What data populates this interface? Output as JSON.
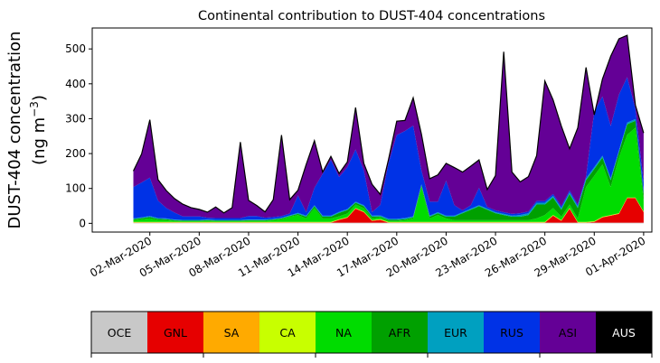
{
  "chart_data": {
    "type": "area",
    "stacked": true,
    "title": "Continental contribution to DUST-404 concentrations",
    "ylabel_line1": "DUST-404 concentration",
    "ylabel_line2_prefix": "(ng m",
    "ylabel_line2_sup": "−3",
    "ylabel_line2_suffix": ")",
    "ylim": [
      -25,
      560
    ],
    "yticks": [
      0,
      100,
      200,
      300,
      400,
      500
    ],
    "xlim": [
      "2020-02-27T12:00",
      "2020-04-01T12:00"
    ],
    "xticks": [
      {
        "date": "2020-03-02",
        "label": "02-Mar-2020"
      },
      {
        "date": "2020-03-05",
        "label": "05-Mar-2020"
      },
      {
        "date": "2020-03-08",
        "label": "08-Mar-2020"
      },
      {
        "date": "2020-03-11",
        "label": "11-Mar-2020"
      },
      {
        "date": "2020-03-14",
        "label": "14-Mar-2020"
      },
      {
        "date": "2020-03-17",
        "label": "17-Mar-2020"
      },
      {
        "date": "2020-03-20",
        "label": "20-Mar-2020"
      },
      {
        "date": "2020-03-23",
        "label": "23-Mar-2020"
      },
      {
        "date": "2020-03-26",
        "label": "26-Mar-2020"
      },
      {
        "date": "2020-03-29",
        "label": "29-Mar-2020"
      },
      {
        "date": "2020-04-01",
        "label": "01-Apr-2020"
      }
    ],
    "x": [
      "2020-03-01T00:00",
      "2020-03-01T12:00",
      "2020-03-02T00:00",
      "2020-03-02T12:00",
      "2020-03-03T00:00",
      "2020-03-03T12:00",
      "2020-03-04T00:00",
      "2020-03-04T12:00",
      "2020-03-05T00:00",
      "2020-03-05T12:00",
      "2020-03-06T00:00",
      "2020-03-06T12:00",
      "2020-03-07T00:00",
      "2020-03-07T12:00",
      "2020-03-08T00:00",
      "2020-03-08T12:00",
      "2020-03-09T00:00",
      "2020-03-09T12:00",
      "2020-03-10T00:00",
      "2020-03-10T12:00",
      "2020-03-11T00:00",
      "2020-03-11T12:00",
      "2020-03-12T00:00",
      "2020-03-12T12:00",
      "2020-03-13T00:00",
      "2020-03-13T12:00",
      "2020-03-14T00:00",
      "2020-03-14T12:00",
      "2020-03-15T00:00",
      "2020-03-15T12:00",
      "2020-03-16T00:00",
      "2020-03-16T12:00",
      "2020-03-17T00:00",
      "2020-03-17T12:00",
      "2020-03-18T00:00",
      "2020-03-18T12:00",
      "2020-03-19T00:00",
      "2020-03-19T12:00",
      "2020-03-20T00:00",
      "2020-03-20T12:00",
      "2020-03-21T00:00",
      "2020-03-21T12:00",
      "2020-03-22T00:00",
      "2020-03-22T12:00",
      "2020-03-23T00:00",
      "2020-03-23T12:00",
      "2020-03-24T00:00",
      "2020-03-24T12:00",
      "2020-03-25T00:00",
      "2020-03-25T12:00",
      "2020-03-26T00:00",
      "2020-03-26T12:00",
      "2020-03-27T00:00",
      "2020-03-27T12:00",
      "2020-03-28T00:00",
      "2020-03-28T12:00",
      "2020-03-29T00:00",
      "2020-03-29T12:00",
      "2020-03-30T00:00",
      "2020-03-30T12:00",
      "2020-03-31T00:00",
      "2020-03-31T12:00",
      "2020-04-01T00:00"
    ],
    "series": [
      {
        "name": "OCE",
        "color": "#c8c8c8",
        "values": [
          2,
          2,
          2,
          2,
          2,
          2,
          2,
          2,
          2,
          2,
          2,
          2,
          2,
          2,
          2,
          2,
          2,
          2,
          2,
          2,
          2,
          2,
          2,
          2,
          2,
          2,
          2,
          2,
          2,
          2,
          2,
          2,
          2,
          2,
          2,
          2,
          2,
          2,
          2,
          2,
          2,
          2,
          2,
          2,
          2,
          2,
          2,
          2,
          2,
          2,
          2,
          2,
          2,
          2,
          2,
          2,
          2,
          2,
          2,
          2,
          2,
          2,
          2
        ]
      },
      {
        "name": "GNL",
        "color": "#e60000",
        "values": [
          0,
          0,
          0,
          0,
          0,
          0,
          0,
          0,
          0,
          0,
          0,
          0,
          0,
          0,
          0,
          0,
          0,
          0,
          0,
          0,
          0,
          0,
          0,
          0,
          0,
          8,
          14,
          40,
          30,
          5,
          8,
          0,
          0,
          0,
          0,
          0,
          0,
          0,
          0,
          0,
          0,
          0,
          0,
          0,
          0,
          0,
          0,
          0,
          0,
          0,
          0,
          20,
          5,
          40,
          0,
          0,
          2,
          15,
          20,
          25,
          70,
          70,
          30
        ]
      },
      {
        "name": "SA",
        "color": "#ffaa00",
        "values": [
          1,
          1,
          1,
          1,
          1,
          1,
          1,
          1,
          1,
          1,
          1,
          1,
          1,
          1,
          1,
          1,
          1,
          1,
          1,
          1,
          1,
          1,
          1,
          1,
          1,
          1,
          1,
          1,
          1,
          1,
          1,
          1,
          1,
          1,
          1,
          1,
          1,
          1,
          1,
          1,
          1,
          1,
          1,
          1,
          1,
          1,
          1,
          1,
          1,
          1,
          1,
          1,
          1,
          1,
          1,
          1,
          1,
          1,
          1,
          1,
          1,
          1,
          1
        ]
      },
      {
        "name": "CA",
        "color": "#c8ff00",
        "values": [
          1,
          1,
          1,
          1,
          1,
          1,
          1,
          1,
          1,
          1,
          1,
          1,
          1,
          1,
          1,
          1,
          1,
          1,
          1,
          1,
          1,
          1,
          1,
          1,
          1,
          1,
          1,
          1,
          1,
          1,
          1,
          1,
          1,
          1,
          1,
          1,
          1,
          1,
          1,
          1,
          1,
          1,
          1,
          1,
          1,
          1,
          1,
          1,
          1,
          1,
          1,
          1,
          1,
          1,
          1,
          1,
          1,
          1,
          1,
          1,
          1,
          1,
          1
        ]
      },
      {
        "name": "NA",
        "color": "#00dc00",
        "values": [
          5,
          8,
          10,
          6,
          5,
          3,
          2,
          2,
          2,
          3,
          2,
          2,
          2,
          2,
          3,
          3,
          3,
          5,
          8,
          15,
          20,
          10,
          40,
          10,
          10,
          8,
          10,
          10,
          10,
          5,
          5,
          3,
          3,
          5,
          10,
          100,
          10,
          20,
          10,
          5,
          5,
          5,
          5,
          5,
          5,
          5,
          5,
          5,
          5,
          10,
          20,
          20,
          10,
          10,
          10,
          100,
          130,
          150,
          80,
          160,
          180,
          200,
          30
        ]
      },
      {
        "name": "AFR",
        "color": "#00a000",
        "values": [
          3,
          3,
          4,
          3,
          3,
          2,
          2,
          2,
          2,
          2,
          2,
          2,
          2,
          2,
          2,
          2,
          2,
          2,
          2,
          2,
          3,
          5,
          5,
          5,
          5,
          10,
          10,
          5,
          5,
          5,
          3,
          3,
          3,
          3,
          3,
          5,
          5,
          5,
          5,
          10,
          20,
          30,
          40,
          30,
          20,
          15,
          10,
          10,
          15,
          40,
          30,
          30,
          20,
          30,
          30,
          20,
          20,
          20,
          20,
          15,
          30,
          20,
          20
        ]
      },
      {
        "name": "EUR",
        "color": "#00a0c0",
        "values": [
          2,
          2,
          3,
          2,
          2,
          2,
          2,
          2,
          2,
          2,
          2,
          2,
          2,
          2,
          2,
          2,
          2,
          2,
          2,
          2,
          3,
          3,
          3,
          3,
          3,
          3,
          3,
          3,
          3,
          3,
          3,
          3,
          3,
          3,
          3,
          3,
          3,
          3,
          3,
          3,
          3,
          3,
          3,
          3,
          3,
          3,
          3,
          5,
          5,
          5,
          5,
          5,
          5,
          5,
          5,
          5,
          5,
          5,
          5,
          5,
          5,
          5,
          5
        ]
      },
      {
        "name": "RUS",
        "color": "#0032e6",
        "values": [
          90,
          100,
          110,
          50,
          30,
          20,
          10,
          10,
          10,
          5,
          5,
          5,
          5,
          5,
          10,
          10,
          5,
          5,
          5,
          5,
          50,
          10,
          50,
          120,
          160,
          100,
          120,
          150,
          100,
          10,
          30,
          160,
          240,
          250,
          260,
          40,
          40,
          30,
          100,
          30,
          5,
          10,
          50,
          5,
          5,
          5,
          5,
          5,
          5,
          5,
          5,
          5,
          5,
          5,
          5,
          5,
          160,
          170,
          150,
          160,
          130,
          30,
          30
        ]
      },
      {
        "name": "ASI",
        "color": "#640096",
        "values": [
          46,
          82,
          166,
          60,
          50,
          40,
          35,
          25,
          20,
          16,
          32,
          15,
          30,
          218,
          45,
          30,
          17,
          50,
          232,
          40,
          15,
          137,
          135,
          5,
          10,
          10,
          15,
          120,
          20,
          80,
          30,
          10,
          40,
          30,
          80,
          104,
          66,
          77,
          50,
          108,
          110,
          112,
          80,
          50,
          100,
          460,
          120,
          90,
          100,
          130,
          344,
          270,
          230,
          120,
          220,
          313,
          -10,
          50,
          200,
          160,
          120,
          10,
          140
        ]
      },
      {
        "name": "AUS",
        "color": "#000000",
        "values": [
          0,
          0,
          0,
          0,
          0,
          0,
          0,
          0,
          0,
          0,
          0,
          0,
          0,
          0,
          0,
          0,
          0,
          0,
          0,
          0,
          0,
          0,
          0,
          0,
          0,
          0,
          0,
          0,
          0,
          0,
          0,
          0,
          0,
          0,
          0,
          0,
          0,
          0,
          0,
          0,
          0,
          0,
          0,
          0,
          0,
          0,
          0,
          0,
          0,
          0,
          0,
          0,
          0,
          0,
          0,
          0,
          0,
          0,
          0,
          0,
          0,
          0,
          0
        ]
      }
    ]
  }
}
